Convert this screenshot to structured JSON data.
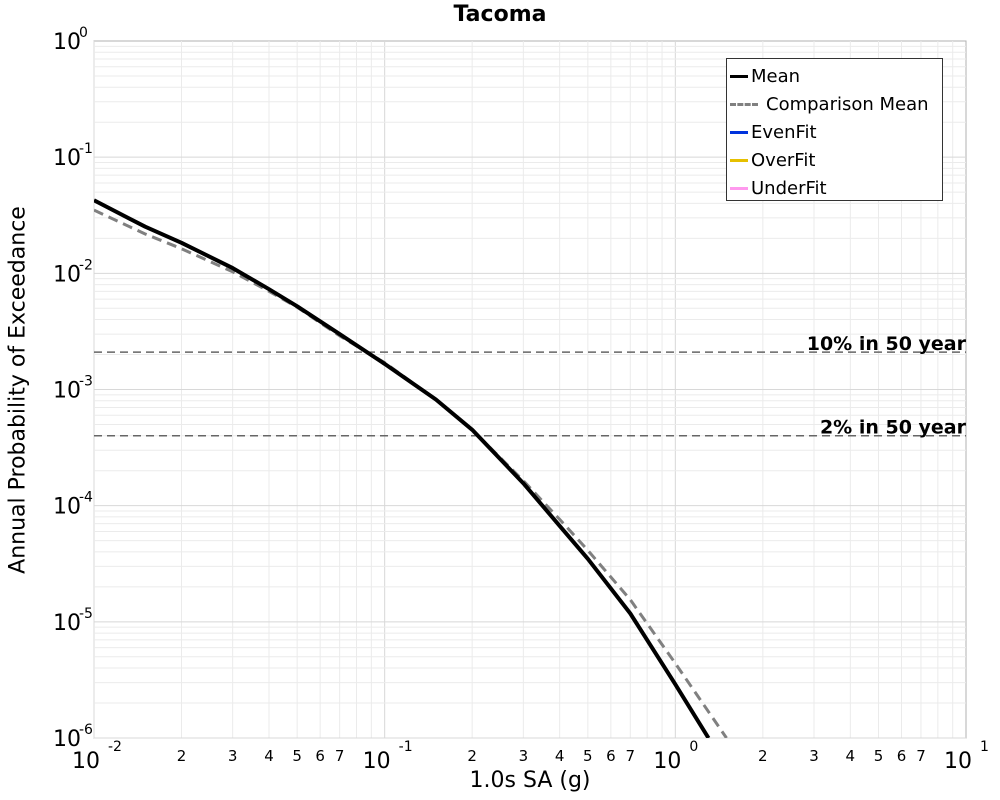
{
  "chart_data": {
    "type": "line",
    "title": "Tacoma",
    "xlabel": "1.0s SA (g)",
    "ylabel": "Annual Probability of Exceedance",
    "xscale": "log",
    "yscale": "log",
    "xlim": [
      0.01,
      10
    ],
    "ylim": [
      1e-06,
      1
    ],
    "grid": true,
    "legend_position": "top-right",
    "x_tick_labels": [
      {
        "base": "10",
        "exp": "-2"
      },
      {
        "base": "10",
        "exp": "-1"
      },
      {
        "base": "10",
        "exp": "0"
      },
      {
        "base": "10",
        "exp": "1"
      }
    ],
    "x_minor_tick_labels": [
      "2",
      "3",
      "4",
      "5",
      "6",
      "7"
    ],
    "y_tick_labels": [
      {
        "base": "10",
        "exp": "0"
      },
      {
        "base": "10",
        "exp": "-1"
      },
      {
        "base": "10",
        "exp": "-2"
      },
      {
        "base": "10",
        "exp": "-3"
      },
      {
        "base": "10",
        "exp": "-4"
      },
      {
        "base": "10",
        "exp": "-5"
      },
      {
        "base": "10",
        "exp": "-6"
      }
    ],
    "series": [
      {
        "name": "Mean",
        "color": "#000000",
        "style": "solid",
        "x": [
          0.01,
          0.015,
          0.02,
          0.03,
          0.04,
          0.05,
          0.07,
          0.1,
          0.15,
          0.2,
          0.3,
          0.4,
          0.5,
          0.7,
          1.0,
          1.3
        ],
        "y": [
          0.0425,
          0.0252,
          0.0183,
          0.0111,
          0.0073,
          0.0052,
          0.003,
          0.00166,
          0.00082,
          0.00045,
          0.000156,
          6.69e-05,
          3.49e-05,
          1.18e-05,
          2.9e-06,
          1e-06
        ]
      },
      {
        "name": "Comparison Mean",
        "color": "#808080",
        "style": "dashed",
        "x": [
          0.01,
          0.015,
          0.02,
          0.03,
          0.04,
          0.05,
          0.07,
          0.1,
          0.15,
          0.2,
          0.3,
          0.4,
          0.5,
          0.7,
          1.0,
          1.5
        ],
        "y": [
          0.035,
          0.0218,
          0.0163,
          0.0103,
          0.007,
          0.0051,
          0.0029,
          0.0017,
          0.00082,
          0.00045,
          0.000164,
          7.62e-05,
          4.13e-05,
          1.55e-05,
          4.4e-06,
          1e-06
        ]
      },
      {
        "name": "EvenFit",
        "color": "#0033dd",
        "style": "solid",
        "x": [],
        "y": []
      },
      {
        "name": "OverFit",
        "color": "#e6c000",
        "style": "solid",
        "x": [],
        "y": []
      },
      {
        "name": "UnderFit",
        "color": "#ff99ee",
        "style": "solid",
        "x": [],
        "y": []
      }
    ],
    "reference_lines": [
      {
        "label": "10% in 50 year",
        "y": 0.0021
      },
      {
        "label": "2% in 50 year",
        "y": 0.0004
      }
    ]
  }
}
